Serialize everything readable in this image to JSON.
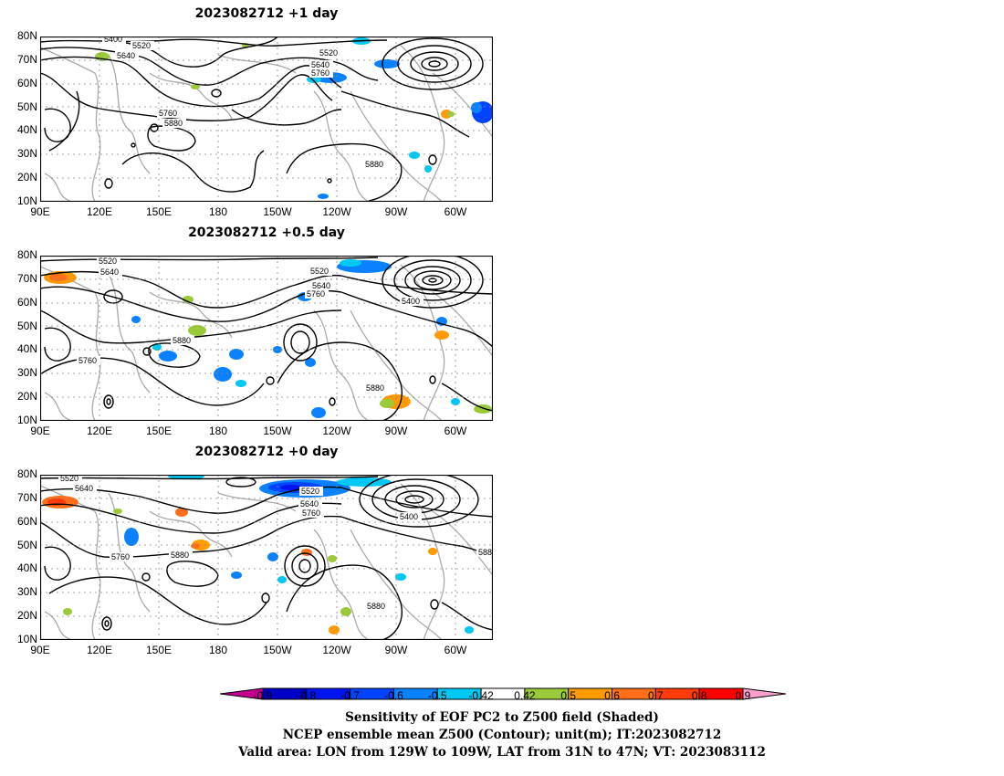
{
  "panels": [
    {
      "title": "2023082712  +1 day",
      "contour_labels": [
        "5400",
        "5520",
        "5640",
        "5520",
        "5640",
        "5760",
        "5760",
        "5880",
        "5880"
      ]
    },
    {
      "title": "2023082712  +0.5 day",
      "contour_labels": [
        "5520",
        "5640",
        "5520",
        "5640",
        "5760",
        "5400",
        "5880",
        "5760",
        "5880"
      ]
    },
    {
      "title": "2023082712  +0 day",
      "contour_labels": [
        "5520",
        "5640",
        "5520",
        "5640",
        "5760",
        "5400",
        "5760",
        "5880",
        "5880",
        "588"
      ]
    }
  ],
  "lat_labels": [
    "80N",
    "70N",
    "60N",
    "50N",
    "40N",
    "30N",
    "20N",
    "10N"
  ],
  "lon_labels": [
    "90E",
    "120E",
    "150E",
    "180",
    "150W",
    "120W",
    "90W",
    "60W"
  ],
  "colorbar": {
    "ticks": [
      "-0.9",
      "-0.8",
      "-0.7",
      "-0.6",
      "-0.5",
      "-0.42",
      "0.42",
      "0.5",
      "0.6",
      "0.7",
      "0.8",
      "0.9"
    ],
    "colors": [
      "#c4008f",
      "#0000c8",
      "#0015f0",
      "#0044ff",
      "#0a82ff",
      "#00c8f5",
      "#ffffff",
      "#9ac93a",
      "#ff9a00",
      "#ff6f1a",
      "#ff3c0a",
      "#ff0000",
      "#f8a0d0"
    ]
  },
  "caption": {
    "line1": "Sensitivity of EOF PC2 to Z500 field (Shaded)",
    "line2": "NCEP ensemble mean Z500 (Contour); unit(m); IT:2023082712",
    "line3": "Valid area: LON from 129W to 109W, LAT from 31N to 47N; VT: 2023083112"
  }
}
